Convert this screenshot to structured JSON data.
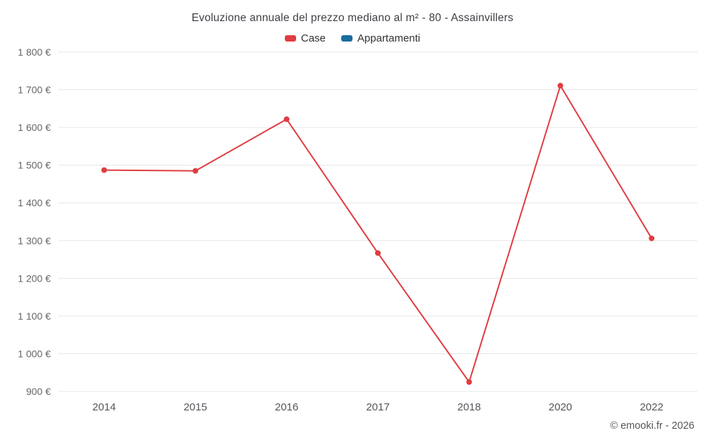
{
  "chart": {
    "title": "Evoluzione annuale del prezzo mediano al m² - 80 - Assainvillers"
  },
  "legend": {
    "items": [
      {
        "label": "Case",
        "color": "#e03c41"
      },
      {
        "label": "Appartamenti",
        "color": "#1a6d9e"
      }
    ]
  },
  "chart_data": {
    "type": "line",
    "title": "Evoluzione annuale del prezzo mediano al m² - 80 - Assainvillers",
    "categories": [
      "2014",
      "2015",
      "2016",
      "2017",
      "2018",
      "2020",
      "2022"
    ],
    "series": [
      {
        "name": "Case",
        "color": "#e03c41",
        "values": [
          1487,
          1485,
          1622,
          1267,
          925,
          1711,
          1306
        ]
      },
      {
        "name": "Appartamenti",
        "color": "#1a6d9e",
        "values": []
      }
    ],
    "xlabel": "",
    "ylabel": "",
    "ylim": [
      900,
      1800
    ],
    "ytick_step": 100,
    "ytick_suffix": " €",
    "grid": "horizontal",
    "legend_position": "top"
  },
  "footer": {
    "credit": "© emooki.fr - 2026"
  }
}
